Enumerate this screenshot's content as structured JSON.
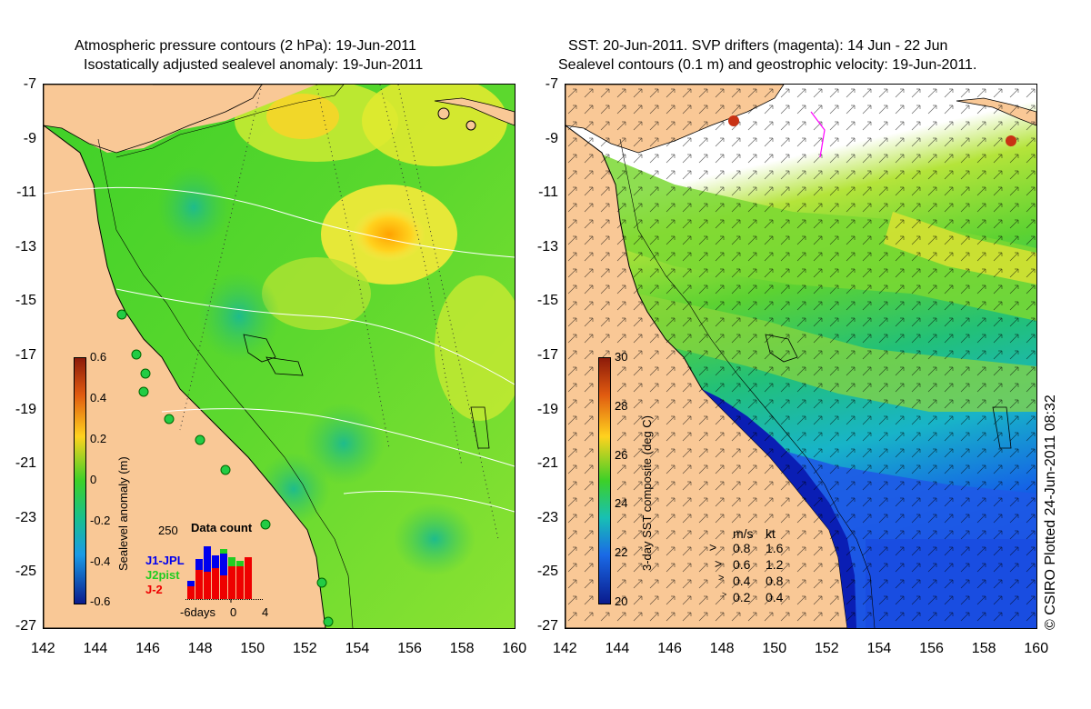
{
  "left_panel": {
    "title_line1": "Atmospheric pressure contours (2 hPa): 19-Jun-2011",
    "title_line2": "Isostatically adjusted sealevel anomaly: 19-Jun-2011",
    "colorbar_label": "Sealevel anomaly (m)",
    "colorbar_ticks": [
      "0.6",
      "0.4",
      "0.2",
      "0",
      "-0.2",
      "-0.4",
      "-0.6"
    ],
    "inset": {
      "title": "Data count",
      "ymax_label": "250",
      "x_labels": [
        "-6days",
        "0",
        "4"
      ],
      "legend": [
        {
          "name": "J1-JPL",
          "color": "#0000ee"
        },
        {
          "name": "J2pist",
          "color": "#22cc22"
        },
        {
          "name": "J-2",
          "color": "#ee0000"
        }
      ]
    }
  },
  "right_panel": {
    "title_line1": "SST: 20-Jun-2011. SVP drifters (magenta): 14 Jun - 22 Jun",
    "title_line2": "Sealevel contours (0.1 m) and geostrophic velocity: 19-Jun-2011.",
    "colorbar_label": "3-day SST composite (deg C)",
    "colorbar_ticks": [
      "30",
      "28",
      "26",
      "24",
      "22",
      "20"
    ],
    "velocity_legend": {
      "header_ms": "m/s",
      "header_kt": "kt",
      "rows": [
        {
          "ms": "0.8",
          "kt": "1.6"
        },
        {
          "ms": "0.6",
          "kt": "1.2"
        },
        {
          "ms": "0.4",
          "kt": "0.8"
        },
        {
          "ms": "0.2",
          "kt": "0.4"
        }
      ]
    }
  },
  "axes": {
    "y_labels": [
      "-7",
      "-9",
      "-11",
      "-13",
      "-15",
      "-17",
      "-19",
      "-21",
      "-23",
      "-25",
      "-27"
    ],
    "x_labels": [
      "142",
      "144",
      "146",
      "148",
      "150",
      "152",
      "154",
      "156",
      "158",
      "160"
    ]
  },
  "credit": "© CSIRO Plotted 24-Jun-2011 08:32",
  "colors": {
    "land": "#f9c896",
    "ocean_green": "#46d42a",
    "ocean_lime": "#a6e632",
    "anomaly_low": "#2fb46a",
    "anomaly_high": "#ffb400",
    "sst_cold": "#0b2fd6",
    "sst_mid": "#16c8c0",
    "sst_warm": "#b4e43a"
  }
}
